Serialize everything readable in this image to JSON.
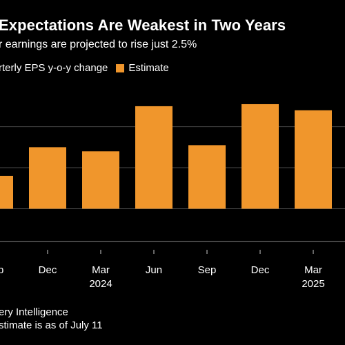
{
  "title": "Expectations Are Weakest in Two Years",
  "subtitle": "r earnings are projected to rise just 2.5%",
  "legend": {
    "series_label": "rterly EPS y-o-y change",
    "estimate_label": "Estimate"
  },
  "colors": {
    "bar": "#f0962c",
    "background": "#000000",
    "grid": "#4a4a4a",
    "text": "#ffffff"
  },
  "footer": {
    "source": "ery Intelligence",
    "note": "stimate is as of July 11"
  },
  "chart_data": {
    "type": "bar",
    "title": "Expectations Are Weakest in Two Years",
    "subtitle": "r earnings are projected to rise just 2.5%",
    "categories": [
      "Sep",
      "Dec",
      "Mar",
      "Jun",
      "Sep",
      "Dec",
      "Mar"
    ],
    "year_labels": [
      "",
      "",
      "2024",
      "",
      "",
      "",
      "2025"
    ],
    "values": [
      1.6,
      3.0,
      2.8,
      5.0,
      3.1,
      5.1,
      4.8
    ],
    "ylim": [
      -1.6,
      5.2
    ],
    "yticks": [
      0,
      2,
      4
    ],
    "grid": true,
    "legend_position": "top-left"
  }
}
